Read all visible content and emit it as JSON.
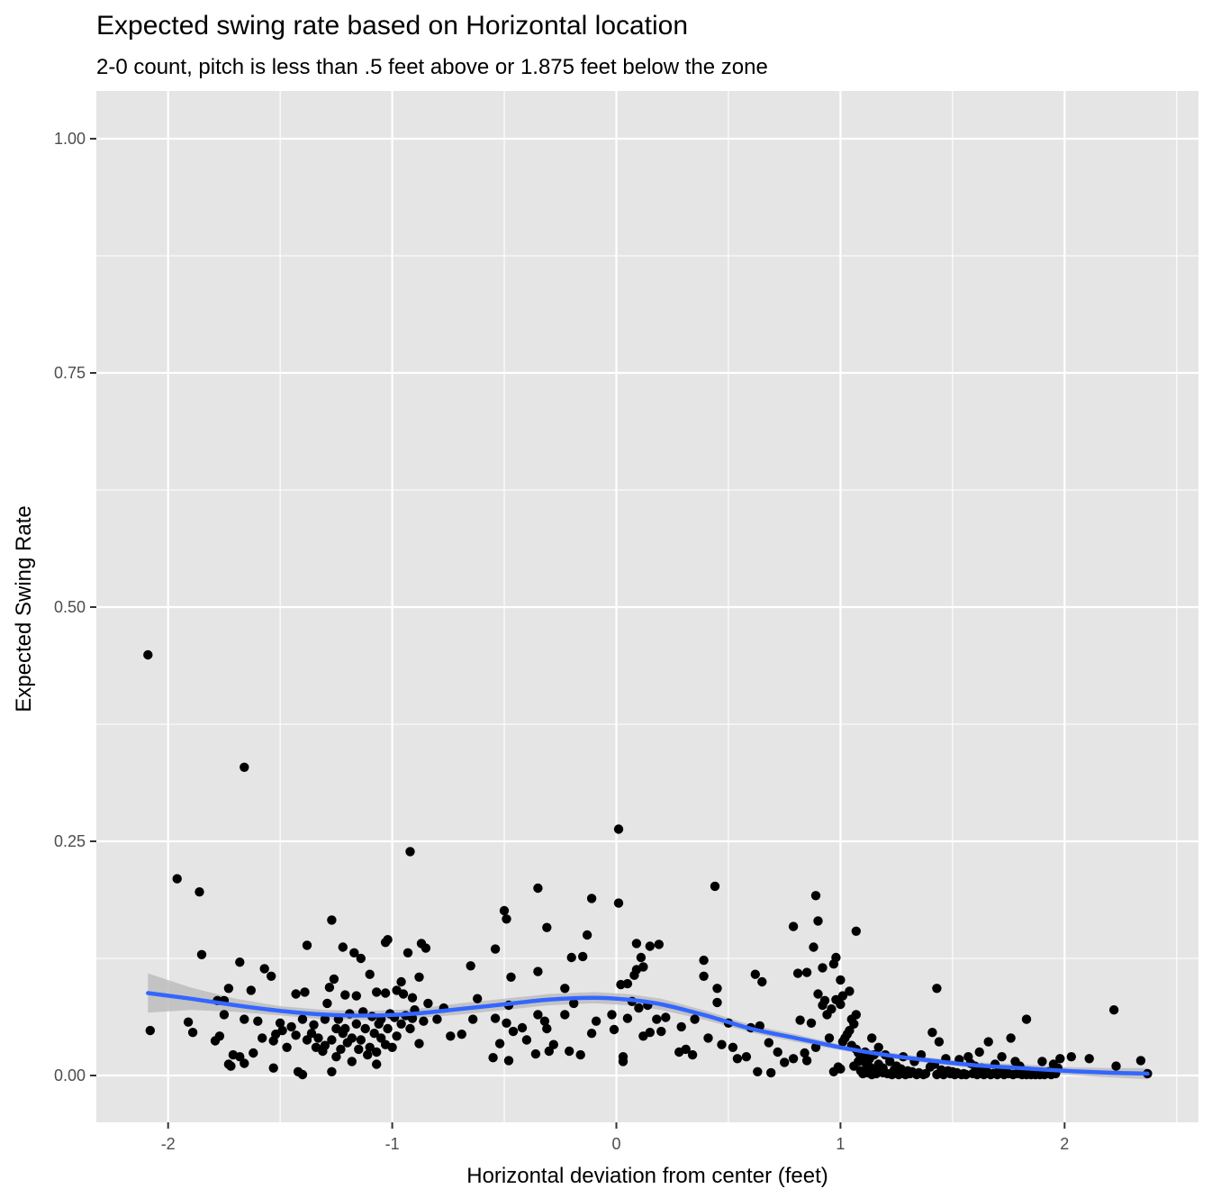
{
  "chart_data": {
    "type": "scatter",
    "title": "Expected swing rate based on Horizontal location",
    "subtitle": "2-0 count, pitch is less than .5 feet above or 1.875 feet below the zone",
    "xlabel": "Horizontal deviation from center (feet)",
    "ylabel": "Expected Swing Rate",
    "xlim": [
      -2.3,
      2.6
    ],
    "ylim": [
      -0.05,
      1.05
    ],
    "x_ticks": [
      -2,
      -1,
      0,
      1,
      2
    ],
    "x_tick_labels": [
      "-2",
      "-1",
      "0",
      "1",
      "2"
    ],
    "y_ticks": [
      0,
      0.25,
      0.5,
      0.75,
      1.0
    ],
    "y_tick_labels": [
      "0.00",
      "0.25",
      "0.50",
      "0.75",
      "1.00"
    ],
    "grid": true,
    "colors": {
      "panel": "#e5e5e5",
      "points": "#000000",
      "smooth_line": "#3366ff",
      "confidence_band": "#bdbdbd"
    },
    "points": [
      [
        -2.09,
        0.449
      ],
      [
        -1.66,
        0.329
      ],
      [
        -0.92,
        0.239
      ],
      [
        0.01,
        0.263
      ],
      [
        0.44,
        0.202
      ],
      [
        -0.35,
        0.2
      ],
      [
        -1.96,
        0.21
      ],
      [
        -1.86,
        0.196
      ],
      [
        -0.5,
        0.176
      ],
      [
        0.89,
        0.192
      ],
      [
        -0.49,
        0.167
      ],
      [
        -1.27,
        0.166
      ],
      [
        -0.11,
        0.189
      ],
      [
        0.01,
        0.184
      ],
      [
        1.07,
        0.154
      ],
      [
        0.79,
        0.159
      ],
      [
        0.9,
        0.165
      ],
      [
        -0.31,
        0.158
      ],
      [
        -0.13,
        0.15
      ],
      [
        -1.38,
        0.139
      ],
      [
        -1.22,
        0.137
      ],
      [
        -1.02,
        0.145
      ],
      [
        -1.03,
        0.142
      ],
      [
        -0.54,
        0.135
      ],
      [
        -0.85,
        0.136
      ],
      [
        -0.87,
        0.141
      ],
      [
        -0.93,
        0.131
      ],
      [
        0.09,
        0.141
      ],
      [
        0.15,
        0.138
      ],
      [
        0.19,
        0.14
      ],
      [
        0.88,
        0.137
      ],
      [
        -1.85,
        0.129
      ],
      [
        -1.17,
        0.131
      ],
      [
        -1.14,
        0.125
      ],
      [
        -0.2,
        0.126
      ],
      [
        -0.15,
        0.127
      ],
      [
        0.11,
        0.126
      ],
      [
        0.12,
        0.116
      ],
      [
        0.09,
        0.113
      ],
      [
        0.81,
        0.109
      ],
      [
        -1.68,
        0.121
      ],
      [
        -0.65,
        0.117
      ],
      [
        -1.57,
        0.114
      ],
      [
        -1.54,
        0.106
      ],
      [
        -1.26,
        0.103
      ],
      [
        -1.1,
        0.108
      ],
      [
        -0.96,
        0.1
      ],
      [
        -0.88,
        0.105
      ],
      [
        -0.35,
        0.111
      ],
      [
        -0.47,
        0.105
      ],
      [
        0.08,
        0.107
      ],
      [
        0.05,
        0.098
      ],
      [
        0.02,
        0.097
      ],
      [
        0.39,
        0.123
      ],
      [
        0.39,
        0.106
      ],
      [
        0.62,
        0.108
      ],
      [
        0.65,
        0.1
      ],
      [
        0.85,
        0.11
      ],
      [
        0.92,
        0.115
      ],
      [
        0.98,
        0.126
      ],
      [
        0.97,
        0.119
      ],
      [
        1.0,
        0.102
      ],
      [
        1.43,
        0.093
      ],
      [
        1.83,
        0.06
      ],
      [
        2.22,
        0.07
      ],
      [
        -1.73,
        0.093
      ],
      [
        -1.63,
        0.091
      ],
      [
        -1.39,
        0.089
      ],
      [
        -1.43,
        0.087
      ],
      [
        -1.28,
        0.094
      ],
      [
        -1.21,
        0.086
      ],
      [
        -1.16,
        0.085
      ],
      [
        -1.07,
        0.089
      ],
      [
        -1.03,
        0.088
      ],
      [
        -0.98,
        0.091
      ],
      [
        -0.95,
        0.087
      ],
      [
        -0.91,
        0.083
      ],
      [
        -0.84,
        0.077
      ],
      [
        -0.77,
        0.072
      ],
      [
        -0.62,
        0.082
      ],
      [
        -0.48,
        0.075
      ],
      [
        -0.35,
        0.065
      ],
      [
        -0.32,
        0.058
      ],
      [
        -0.23,
        0.065
      ],
      [
        -0.23,
        0.093
      ],
      [
        -0.19,
        0.077
      ],
      [
        -0.02,
        0.065
      ],
      [
        0.07,
        0.079
      ],
      [
        0.14,
        0.075
      ],
      [
        0.18,
        0.06
      ],
      [
        0.22,
        0.062
      ],
      [
        0.29,
        0.052
      ],
      [
        0.35,
        0.06
      ],
      [
        0.45,
        0.078
      ],
      [
        0.45,
        0.093
      ],
      [
        0.5,
        0.056
      ],
      [
        0.6,
        0.051
      ],
      [
        0.64,
        0.053
      ],
      [
        0.82,
        0.059
      ],
      [
        0.87,
        0.056
      ],
      [
        0.9,
        0.087
      ],
      [
        0.92,
        0.075
      ],
      [
        0.93,
        0.08
      ],
      [
        0.96,
        0.071
      ],
      [
        1.0,
        0.076
      ],
      [
        1.01,
        0.085
      ],
      [
        1.04,
        0.09
      ],
      [
        1.07,
        0.065
      ],
      [
        0.94,
        0.065
      ],
      [
        0.98,
        0.081
      ],
      [
        -1.78,
        0.08
      ],
      [
        -1.75,
        0.065
      ],
      [
        -1.75,
        0.08
      ],
      [
        -1.66,
        0.06
      ],
      [
        -1.6,
        0.058
      ],
      [
        -1.5,
        0.056
      ],
      [
        -1.45,
        0.052
      ],
      [
        -1.35,
        0.054
      ],
      [
        -1.29,
        0.077
      ],
      [
        -1.24,
        0.06
      ],
      [
        -1.19,
        0.066
      ],
      [
        -1.13,
        0.068
      ],
      [
        -1.09,
        0.063
      ],
      [
        -1.05,
        0.06
      ],
      [
        -1.01,
        0.066
      ],
      [
        -0.94,
        0.064
      ],
      [
        -0.91,
        0.061
      ],
      [
        -0.86,
        0.058
      ],
      [
        -0.8,
        0.06
      ],
      [
        -0.64,
        0.06
      ],
      [
        -0.54,
        0.061
      ],
      [
        -0.49,
        0.056
      ],
      [
        -0.42,
        0.051
      ],
      [
        -0.31,
        0.05
      ],
      [
        -0.09,
        0.058
      ],
      [
        -0.01,
        0.049
      ],
      [
        0.05,
        0.061
      ],
      [
        0.1,
        0.072
      ],
      [
        0.2,
        0.047
      ],
      [
        0.31,
        0.028
      ],
      [
        0.41,
        0.04
      ],
      [
        0.47,
        0.033
      ],
      [
        0.52,
        0.03
      ],
      [
        0.58,
        0.02
      ],
      [
        0.68,
        0.035
      ],
      [
        0.72,
        0.025
      ],
      [
        0.79,
        0.018
      ],
      [
        0.84,
        0.024
      ],
      [
        0.89,
        0.03
      ],
      [
        0.95,
        0.04
      ],
      [
        -2.08,
        0.048
      ],
      [
        -1.91,
        0.057
      ],
      [
        -1.89,
        0.046
      ],
      [
        -1.79,
        0.037
      ],
      [
        -1.77,
        0.042
      ],
      [
        -1.71,
        0.022
      ],
      [
        -1.68,
        0.02
      ],
      [
        -1.62,
        0.024
      ],
      [
        -1.58,
        0.04
      ],
      [
        -1.53,
        0.037
      ],
      [
        -1.49,
        0.048
      ],
      [
        -1.43,
        0.043
      ],
      [
        -1.38,
        0.038
      ],
      [
        -1.34,
        0.03
      ],
      [
        -1.31,
        0.026
      ],
      [
        -1.25,
        0.02
      ],
      [
        -1.2,
        0.035
      ],
      [
        -1.15,
        0.028
      ],
      [
        -1.11,
        0.022
      ],
      [
        -1.07,
        0.025
      ],
      [
        -1.03,
        0.033
      ],
      [
        -0.98,
        0.042
      ],
      [
        -0.92,
        0.05
      ],
      [
        -0.88,
        0.034
      ],
      [
        -0.74,
        0.042
      ],
      [
        -0.69,
        0.044
      ],
      [
        -0.52,
        0.034
      ],
      [
        -0.46,
        0.047
      ],
      [
        -0.4,
        0.038
      ],
      [
        -0.36,
        0.023
      ],
      [
        -0.28,
        0.033
      ],
      [
        -0.21,
        0.026
      ],
      [
        -0.16,
        0.022
      ],
      [
        -0.11,
        0.045
      ],
      [
        0.03,
        0.02
      ],
      [
        0.03,
        0.015
      ],
      [
        0.12,
        0.042
      ],
      [
        0.15,
        0.046
      ],
      [
        0.28,
        0.025
      ],
      [
        0.34,
        0.022
      ],
      [
        0.54,
        0.018
      ],
      [
        0.63,
        0.004
      ],
      [
        0.69,
        0.003
      ],
      [
        0.75,
        0.014
      ],
      [
        0.85,
        0.016
      ],
      [
        0.97,
        0.004
      ],
      [
        0.99,
        0.009
      ],
      [
        1.0,
        0.007
      ],
      [
        -1.73,
        0.012
      ],
      [
        -1.72,
        0.01
      ],
      [
        -1.66,
        0.013
      ],
      [
        -1.53,
        0.008
      ],
      [
        -1.42,
        0.004
      ],
      [
        -1.4,
        0.001
      ],
      [
        -1.27,
        0.004
      ],
      [
        -1.18,
        0.015
      ],
      [
        -1.07,
        0.012
      ],
      [
        -0.55,
        0.019
      ],
      [
        -0.48,
        0.016
      ],
      [
        -0.3,
        0.026
      ],
      [
        1.05,
        0.06
      ],
      [
        1.06,
        0.055
      ],
      [
        1.04,
        0.048
      ],
      [
        1.03,
        0.044
      ],
      [
        1.02,
        0.04
      ],
      [
        1.01,
        0.036
      ],
      [
        1.05,
        0.032
      ],
      [
        1.07,
        0.028
      ],
      [
        1.08,
        0.024
      ],
      [
        1.09,
        0.02
      ],
      [
        1.1,
        0.017
      ],
      [
        1.11,
        0.014
      ],
      [
        1.12,
        0.011
      ],
      [
        1.13,
        0.009
      ],
      [
        1.15,
        0.007
      ],
      [
        1.16,
        0.005
      ],
      [
        1.18,
        0.004
      ],
      [
        1.19,
        0.003
      ],
      [
        1.21,
        0.002
      ],
      [
        1.23,
        0.001
      ],
      [
        1.14,
        0.04
      ],
      [
        1.17,
        0.03
      ],
      [
        1.2,
        0.022
      ],
      [
        1.22,
        0.015
      ],
      [
        1.25,
        0.01
      ],
      [
        1.27,
        0.007
      ],
      [
        1.3,
        0.005
      ],
      [
        1.32,
        0.004
      ],
      [
        1.35,
        0.003
      ],
      [
        1.38,
        0.002
      ],
      [
        1.28,
        0.02
      ],
      [
        1.33,
        0.015
      ],
      [
        1.36,
        0.022
      ],
      [
        1.4,
        0.009
      ],
      [
        1.42,
        0.012
      ],
      [
        1.45,
        0.006
      ],
      [
        1.48,
        0.005
      ],
      [
        1.5,
        0.004
      ],
      [
        1.52,
        0.003
      ],
      [
        1.55,
        0.002
      ],
      [
        1.41,
        0.046
      ],
      [
        1.44,
        0.036
      ],
      [
        1.47,
        0.018
      ],
      [
        1.53,
        0.017
      ],
      [
        1.58,
        0.013
      ],
      [
        1.6,
        0.01
      ],
      [
        1.63,
        0.008
      ],
      [
        1.66,
        0.036
      ],
      [
        1.69,
        0.012
      ],
      [
        1.71,
        0.006
      ],
      [
        1.74,
        0.004
      ],
      [
        1.76,
        0.04
      ],
      [
        1.78,
        0.015
      ],
      [
        1.8,
        0.01
      ],
      [
        1.84,
        0.003
      ],
      [
        1.86,
        0.002
      ],
      [
        1.88,
        0.003
      ],
      [
        1.9,
        0.015
      ],
      [
        1.93,
        0.004
      ],
      [
        1.95,
        0.012
      ],
      [
        1.98,
        0.018
      ],
      [
        2.03,
        0.02
      ],
      [
        2.11,
        0.018
      ],
      [
        2.23,
        0.01
      ],
      [
        2.34,
        0.016
      ],
      [
        2.37,
        0.002
      ],
      [
        1.57,
        0.02
      ],
      [
        1.62,
        0.025
      ],
      [
        1.65,
        0.005
      ],
      [
        1.72,
        0.02
      ],
      [
        1.82,
        0.005
      ],
      [
        1.89,
        0.001
      ],
      [
        1.92,
        0.002
      ],
      [
        1.97,
        0.008
      ],
      [
        1.68,
        0.002
      ],
      [
        1.1,
        0.002
      ],
      [
        1.12,
        0.003
      ],
      [
        1.14,
        0.001
      ],
      [
        1.16,
        0.002
      ],
      [
        1.26,
        0.001
      ],
      [
        1.29,
        0.001
      ],
      [
        1.31,
        0.002
      ],
      [
        1.34,
        0.001
      ],
      [
        1.37,
        0.001
      ],
      [
        1.43,
        0.001
      ],
      [
        1.46,
        0.001
      ],
      [
        1.49,
        0.002
      ],
      [
        1.51,
        0.001
      ],
      [
        1.54,
        0.001
      ],
      [
        1.56,
        0.001
      ],
      [
        1.59,
        0.002
      ],
      [
        1.61,
        0.001
      ],
      [
        1.64,
        0.001
      ],
      [
        1.67,
        0.001
      ],
      [
        1.7,
        0.001
      ],
      [
        1.73,
        0.001
      ],
      [
        1.75,
        0.002
      ],
      [
        1.77,
        0.001
      ],
      [
        1.79,
        0.002
      ],
      [
        1.81,
        0.001
      ],
      [
        1.83,
        0.001
      ],
      [
        1.85,
        0.001
      ],
      [
        1.87,
        0.001
      ],
      [
        1.91,
        0.001
      ],
      [
        1.94,
        0.001
      ],
      [
        1.96,
        0.002
      ],
      [
        1.06,
        0.01
      ],
      [
        1.08,
        0.015
      ],
      [
        1.09,
        0.005
      ],
      [
        1.11,
        0.025
      ],
      [
        1.13,
        0.018
      ],
      [
        1.15,
        0.022
      ],
      [
        1.17,
        0.012
      ],
      [
        1.19,
        0.008
      ],
      [
        1.24,
        0.006
      ],
      [
        -1.3,
        0.06
      ],
      [
        -1.25,
        0.05
      ],
      [
        -1.22,
        0.045
      ],
      [
        -1.18,
        0.04
      ],
      [
        -1.12,
        0.05
      ],
      [
        -1.08,
        0.045
      ],
      [
        -1.05,
        0.04
      ],
      [
        -1.0,
        0.03
      ],
      [
        -0.96,
        0.055
      ],
      [
        -0.9,
        0.07
      ],
      [
        -1.4,
        0.06
      ],
      [
        -1.36,
        0.045
      ],
      [
        -1.33,
        0.04
      ],
      [
        -1.47,
        0.03
      ],
      [
        -1.52,
        0.044
      ],
      [
        -1.3,
        0.032
      ],
      [
        -1.27,
        0.038
      ],
      [
        -1.23,
        0.028
      ],
      [
        -1.21,
        0.05
      ],
      [
        -1.16,
        0.055
      ],
      [
        -1.14,
        0.038
      ],
      [
        -1.1,
        0.03
      ],
      [
        -1.06,
        0.055
      ],
      [
        -1.02,
        0.05
      ],
      [
        -0.99,
        0.062
      ]
    ],
    "smooth_line": {
      "x": [
        -2.09,
        -1.9,
        -1.7,
        -1.5,
        -1.3,
        -1.1,
        -0.9,
        -0.7,
        -0.5,
        -0.3,
        -0.1,
        0.05,
        0.2,
        0.4,
        0.6,
        0.8,
        1.0,
        1.2,
        1.4,
        1.6,
        1.8,
        2.0,
        2.2,
        2.37
      ],
      "y": [
        0.088,
        0.082,
        0.075,
        0.069,
        0.065,
        0.064,
        0.066,
        0.071,
        0.076,
        0.081,
        0.083,
        0.081,
        0.076,
        0.064,
        0.05,
        0.04,
        0.03,
        0.022,
        0.016,
        0.011,
        0.008,
        0.005,
        0.003,
        0.002
      ]
    },
    "confidence_band": {
      "x": [
        -2.09,
        -1.9,
        -1.7,
        -1.5,
        -1.3,
        -1.1,
        -0.9,
        -0.7,
        -0.5,
        -0.3,
        -0.1,
        0.05,
        0.2,
        0.4,
        0.6,
        0.8,
        1.0,
        1.2,
        1.4,
        1.6,
        1.8,
        2.0,
        2.2,
        2.37
      ],
      "lower": [
        0.067,
        0.07,
        0.068,
        0.064,
        0.06,
        0.059,
        0.061,
        0.065,
        0.07,
        0.075,
        0.077,
        0.075,
        0.07,
        0.059,
        0.046,
        0.036,
        0.027,
        0.019,
        0.013,
        0.008,
        0.004,
        0.001,
        -0.002,
        -0.004
      ],
      "upper": [
        0.109,
        0.094,
        0.082,
        0.074,
        0.07,
        0.069,
        0.071,
        0.077,
        0.082,
        0.087,
        0.089,
        0.087,
        0.082,
        0.069,
        0.054,
        0.044,
        0.033,
        0.025,
        0.019,
        0.014,
        0.012,
        0.009,
        0.008,
        0.008
      ]
    }
  }
}
